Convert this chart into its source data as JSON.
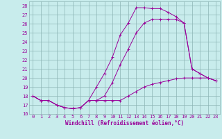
{
  "xlabel": "Windchill (Refroidissement éolien,°C)",
  "bg_color": "#c8ecec",
  "grid_color": "#8cb4b4",
  "line_color": "#990099",
  "xlim": [
    -0.5,
    23.5
  ],
  "ylim": [
    16,
    28.5
  ],
  "xticks": [
    0,
    1,
    2,
    3,
    4,
    5,
    6,
    7,
    8,
    9,
    10,
    11,
    12,
    13,
    14,
    15,
    16,
    17,
    18,
    19,
    20,
    21,
    22,
    23
  ],
  "yticks": [
    16,
    17,
    18,
    19,
    20,
    21,
    22,
    23,
    24,
    25,
    26,
    27,
    28
  ],
  "line1_x": [
    0,
    1,
    2,
    3,
    4,
    5,
    6,
    7,
    8,
    9,
    10,
    11,
    12,
    13,
    14,
    15,
    16,
    17,
    18,
    19,
    20,
    21,
    22,
    23
  ],
  "line1_y": [
    18.0,
    17.5,
    17.5,
    17.0,
    16.7,
    16.6,
    16.7,
    17.5,
    19.0,
    20.5,
    22.3,
    24.8,
    26.1,
    27.8,
    27.8,
    27.7,
    27.7,
    27.3,
    26.8,
    26.1,
    21.0,
    20.5,
    20.0,
    19.7
  ],
  "line2_x": [
    0,
    1,
    2,
    3,
    4,
    5,
    6,
    7,
    8,
    9,
    10,
    11,
    12,
    13,
    14,
    15,
    16,
    17,
    18,
    19,
    20,
    21,
    22,
    23
  ],
  "line2_y": [
    18.0,
    17.5,
    17.5,
    17.0,
    16.7,
    16.6,
    16.7,
    17.5,
    17.5,
    17.5,
    17.5,
    17.5,
    18.0,
    18.5,
    19.0,
    19.3,
    19.5,
    19.7,
    19.9,
    20.0,
    20.0,
    20.0,
    20.0,
    19.7
  ],
  "line3_x": [
    0,
    1,
    2,
    3,
    4,
    5,
    6,
    7,
    8,
    9,
    10,
    11,
    12,
    13,
    14,
    15,
    16,
    17,
    18,
    19,
    20,
    21,
    22,
    23
  ],
  "line3_y": [
    18.0,
    17.5,
    17.5,
    17.0,
    16.7,
    16.6,
    16.7,
    17.5,
    17.5,
    18.0,
    19.5,
    21.5,
    23.2,
    25.0,
    26.1,
    26.5,
    26.5,
    26.5,
    26.5,
    26.1,
    21.0,
    20.5,
    20.0,
    19.7
  ],
  "tick_fontsize": 5.0,
  "xlabel_fontsize": 5.5,
  "lw": 0.7,
  "ms": 2.5
}
